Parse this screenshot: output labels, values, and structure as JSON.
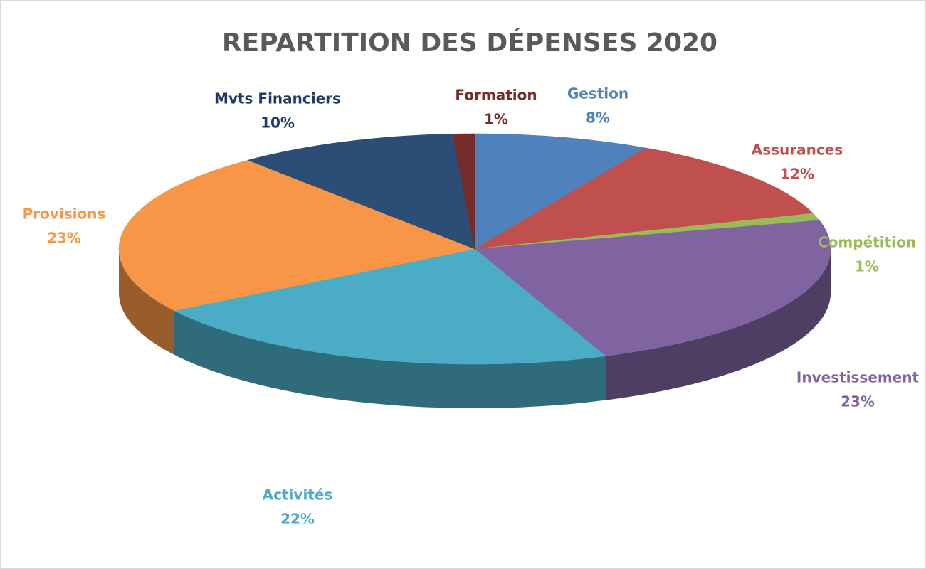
{
  "chart_data": {
    "type": "pie3d",
    "title": "REPARTITION DES DÉPENSES 2020",
    "categories": [
      "Gestion",
      "Assurances",
      "Compétition",
      "Investissement",
      "Activités",
      "Provisions",
      "Mvts Financiers",
      "Formation"
    ],
    "values": [
      8,
      12,
      1,
      23,
      22,
      23,
      10,
      1
    ],
    "value_labels": [
      "8%",
      "12%",
      "1%",
      "23%",
      "22%",
      "23%",
      "10%",
      "1%"
    ],
    "colors": [
      "#4f81bd",
      "#c0504d",
      "#9bbb59",
      "#8064a2",
      "#4bacc6",
      "#f79646",
      "#2c4d75",
      "#772c2a"
    ]
  }
}
